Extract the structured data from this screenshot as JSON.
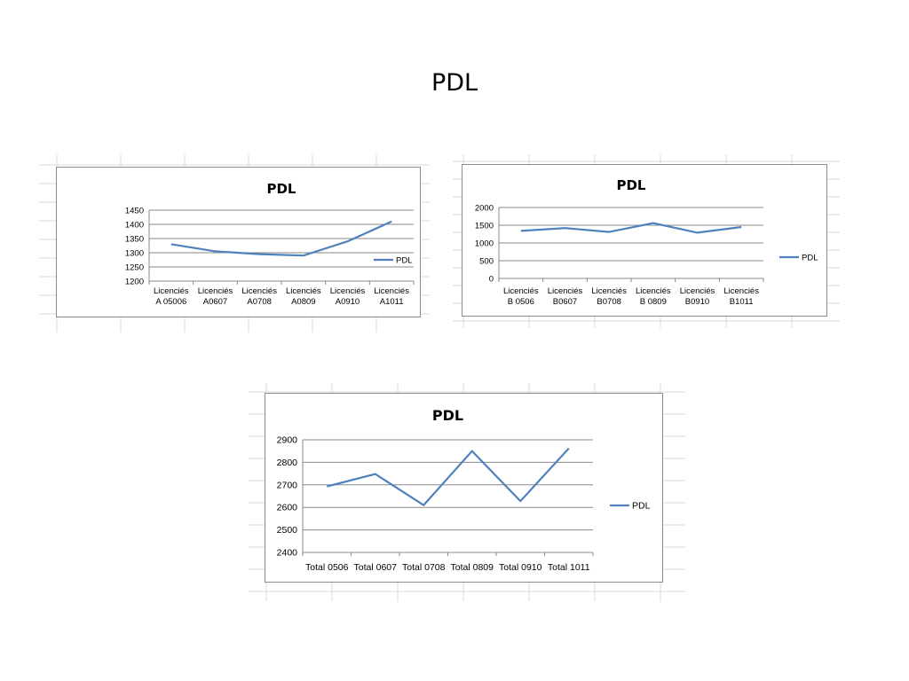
{
  "slide": {
    "title": "PDL"
  },
  "colors": {
    "series": "#4f81bd",
    "grid": "#8a8a8a",
    "frame": "#8c8c8c",
    "sheet": "#d9d9d9"
  },
  "chart_data": [
    {
      "type": "line",
      "title": "PDL",
      "categories": [
        [
          "Licenciés",
          "A 05006"
        ],
        [
          "Licenciés",
          "A0607"
        ],
        [
          "Licenciés",
          "A0708"
        ],
        [
          "Licenciés",
          "A0809"
        ],
        [
          "Licenciés",
          "A0910"
        ],
        [
          "Licenciés",
          "A1011"
        ]
      ],
      "series": [
        {
          "name": "PDL",
          "values": [
            1330,
            1305,
            1295,
            1290,
            1340,
            1410
          ]
        }
      ],
      "ylim": [
        1200,
        1450
      ],
      "yticks": [
        1200,
        1250,
        1300,
        1350,
        1400,
        1450
      ],
      "grid": true,
      "legend": "right"
    },
    {
      "type": "line",
      "title": "PDL",
      "categories": [
        [
          "Licenciés",
          "B 0506"
        ],
        [
          "Licenciés",
          "B0607"
        ],
        [
          "Licenciés",
          "B0708"
        ],
        [
          "Licenciés",
          "B 0809"
        ],
        [
          "Licenciés",
          "B0910"
        ],
        [
          "Licenciés",
          "B1011"
        ]
      ],
      "series": [
        {
          "name": "PDL",
          "values": [
            1340,
            1420,
            1310,
            1560,
            1290,
            1450
          ]
        }
      ],
      "ylim": [
        0,
        2000
      ],
      "yticks": [
        0,
        500,
        1000,
        1500,
        2000
      ],
      "grid": true,
      "legend": "right"
    },
    {
      "type": "line",
      "title": "PDL",
      "categories": [
        [
          "Total 0506"
        ],
        [
          "Total 0607"
        ],
        [
          "Total 0708"
        ],
        [
          "Total 0809"
        ],
        [
          "Total 0910"
        ],
        [
          "Total 1011"
        ]
      ],
      "series": [
        {
          "name": "PDL",
          "values": [
            2693,
            2748,
            2610,
            2850,
            2628,
            2862
          ]
        }
      ],
      "ylim": [
        2400,
        2900
      ],
      "yticks": [
        2400,
        2500,
        2600,
        2700,
        2800,
        2900
      ],
      "grid": true,
      "legend": "right"
    }
  ]
}
